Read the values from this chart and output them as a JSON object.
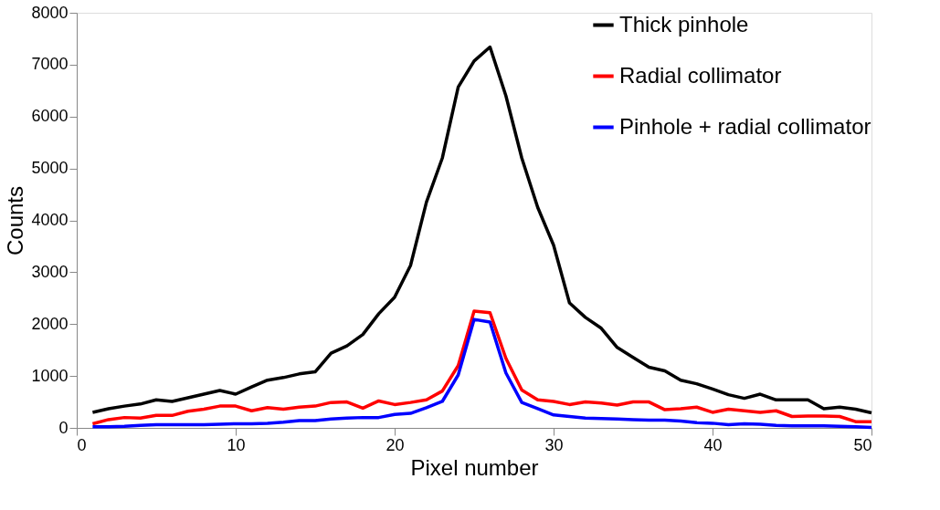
{
  "chart_data": {
    "type": "line",
    "xlabel": "Pixel number",
    "ylabel": "Counts",
    "x": [
      1,
      2,
      3,
      4,
      5,
      6,
      7,
      8,
      9,
      10,
      11,
      12,
      13,
      14,
      15,
      16,
      17,
      18,
      19,
      20,
      21,
      22,
      23,
      24,
      25,
      26,
      27,
      28,
      29,
      30,
      31,
      32,
      33,
      34,
      35,
      36,
      37,
      38,
      39,
      40,
      41,
      42,
      43,
      44,
      45,
      46,
      47,
      48,
      49,
      50
    ],
    "series": [
      {
        "name": "Thick pinhole",
        "color": "#000000",
        "values": [
          300,
          370,
          420,
          460,
          540,
          510,
          580,
          650,
          720,
          650,
          790,
          920,
          970,
          1040,
          1080,
          1440,
          1580,
          1800,
          2200,
          2520,
          3130,
          4350,
          5200,
          6570,
          7070,
          7340,
          6400,
          5200,
          4250,
          3520,
          2410,
          2130,
          1920,
          1550,
          1360,
          1170,
          1100,
          920,
          850,
          750,
          640,
          570,
          650,
          540,
          540,
          540,
          370,
          400,
          360,
          290
        ]
      },
      {
        "name": "Radial collimator",
        "color": "#ff0000",
        "values": [
          80,
          160,
          200,
          190,
          240,
          240,
          320,
          360,
          420,
          420,
          330,
          390,
          360,
          400,
          420,
          490,
          500,
          380,
          520,
          450,
          490,
          540,
          710,
          1200,
          2250,
          2220,
          1340,
          730,
          540,
          510,
          450,
          500,
          480,
          440,
          500,
          500,
          350,
          370,
          400,
          300,
          360,
          330,
          300,
          330,
          220,
          230,
          230,
          220,
          120,
          120
        ]
      },
      {
        "name": "Pinhole + radial collimator",
        "color": "#0000ff",
        "values": [
          20,
          20,
          30,
          50,
          60,
          60,
          60,
          60,
          70,
          80,
          80,
          90,
          110,
          140,
          140,
          170,
          190,
          200,
          200,
          260,
          280,
          390,
          510,
          1020,
          2090,
          2040,
          1060,
          490,
          370,
          250,
          220,
          190,
          180,
          170,
          160,
          150,
          150,
          130,
          100,
          90,
          60,
          80,
          70,
          50,
          40,
          40,
          40,
          30,
          20,
          10
        ]
      }
    ],
    "xlim": [
      0,
      50
    ],
    "xticks": [
      0,
      10,
      20,
      30,
      40,
      50
    ],
    "ylim": [
      0,
      8000
    ],
    "yticks": [
      0,
      1000,
      2000,
      3000,
      4000,
      5000,
      6000,
      7000,
      8000
    ],
    "grid": false,
    "legend": "top right",
    "marker": "none",
    "line_style": "solid"
  }
}
